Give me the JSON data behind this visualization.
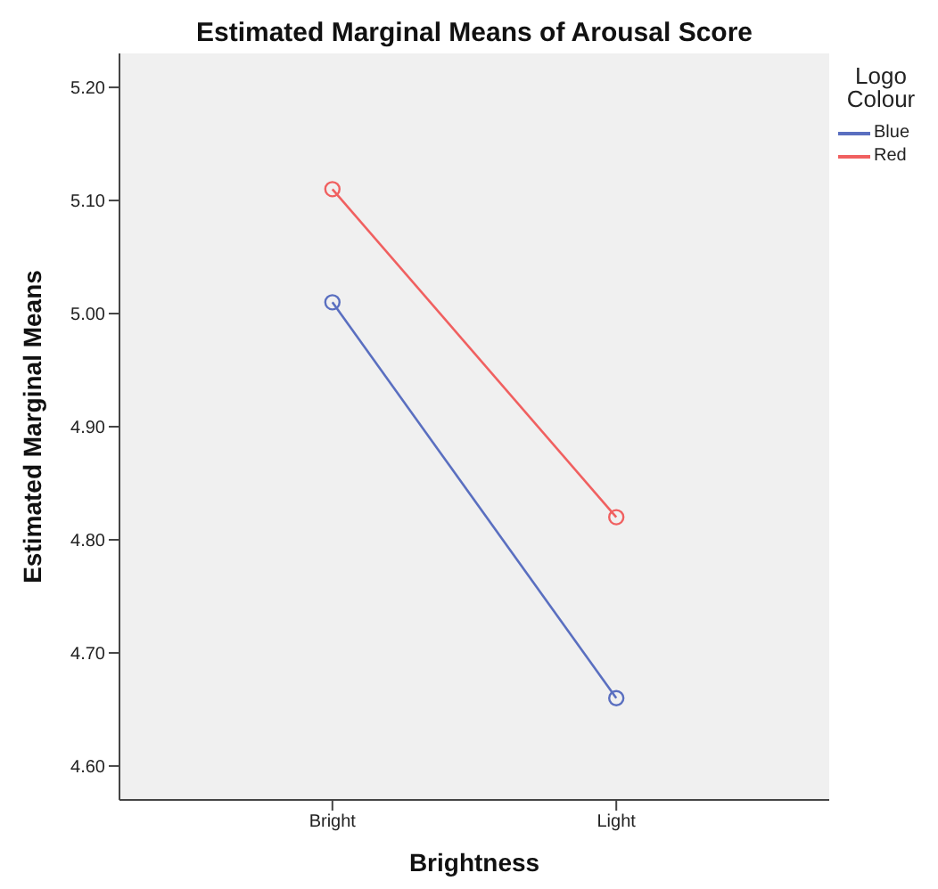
{
  "chart_data": {
    "type": "line",
    "title": "Estimated Marginal Means of Arousal Score",
    "xlabel": "Brightness",
    "ylabel": "Estimated Marginal Means",
    "legend_title": "Logo Colour",
    "categories": [
      "Bright",
      "Light"
    ],
    "series": [
      {
        "name": "Blue",
        "color": "#5a6fc0",
        "values": [
          5.01,
          4.66
        ]
      },
      {
        "name": "Red",
        "color": "#f06060",
        "values": [
          5.11,
          4.82
        ]
      }
    ],
    "ylim": [
      4.57,
      5.23
    ],
    "yticks": [
      {
        "value": 4.6,
        "label": "4.60"
      },
      {
        "value": 4.7,
        "label": "4.70"
      },
      {
        "value": 4.8,
        "label": "4.80"
      },
      {
        "value": 4.9,
        "label": "4.90"
      },
      {
        "value": 5.0,
        "label": "5.00"
      },
      {
        "value": 5.1,
        "label": "5.10"
      },
      {
        "value": 5.2,
        "label": "5.20"
      }
    ],
    "marker": "circle",
    "legend": "top right"
  }
}
